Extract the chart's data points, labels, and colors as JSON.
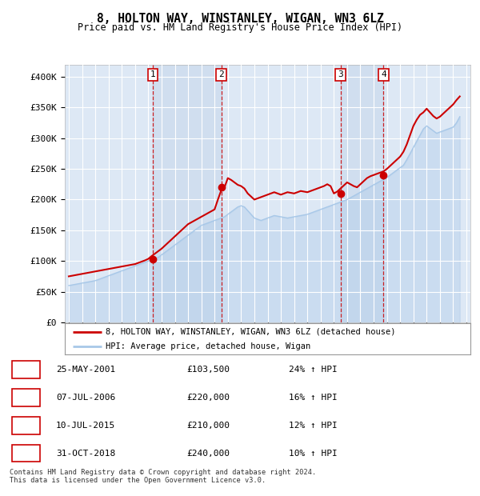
{
  "title": "8, HOLTON WAY, WINSTANLEY, WIGAN, WN3 6LZ",
  "subtitle": "Price paid vs. HM Land Registry's House Price Index (HPI)",
  "background_color": "#ffffff",
  "plot_bg_color": "#dde8f5",
  "grid_color": "#ffffff",
  "sale_color": "#cc0000",
  "hpi_color": "#a8c8e8",
  "ylim": [
    0,
    420000
  ],
  "yticks": [
    0,
    50000,
    100000,
    150000,
    200000,
    250000,
    300000,
    350000,
    400000
  ],
  "ytick_labels": [
    "£0",
    "£50K",
    "£100K",
    "£150K",
    "£200K",
    "£250K",
    "£300K",
    "£350K",
    "£400K"
  ],
  "sales": [
    {
      "date": "2001-05-25",
      "price": 103500,
      "label": "1"
    },
    {
      "date": "2006-07-07",
      "price": 220000,
      "label": "2"
    },
    {
      "date": "2015-07-10",
      "price": 210000,
      "label": "3"
    },
    {
      "date": "2018-10-31",
      "price": 240000,
      "label": "4"
    }
  ],
  "sale_table": [
    {
      "num": "1",
      "date": "25-MAY-2001",
      "price": "£103,500",
      "change": "24% ↑ HPI"
    },
    {
      "num": "2",
      "date": "07-JUL-2006",
      "price": "£220,000",
      "change": "16% ↑ HPI"
    },
    {
      "num": "3",
      "date": "10-JUL-2015",
      "price": "£210,000",
      "change": "12% ↑ HPI"
    },
    {
      "num": "4",
      "date": "31-OCT-2018",
      "price": "£240,000",
      "change": "10% ↑ HPI"
    }
  ],
  "footer": "Contains HM Land Registry data © Crown copyright and database right 2024.\nThis data is licensed under the Open Government Licence v3.0.",
  "legend_sale": "8, HOLTON WAY, WINSTANLEY, WIGAN, WN3 6LZ (detached house)",
  "legend_hpi": "HPI: Average price, detached house, Wigan",
  "hpi_x": [
    1995.0,
    1995.25,
    1995.5,
    1995.75,
    1996.0,
    1996.25,
    1996.5,
    1996.75,
    1997.0,
    1997.25,
    1997.5,
    1997.75,
    1998.0,
    1998.25,
    1998.5,
    1998.75,
    1999.0,
    1999.25,
    1999.5,
    1999.75,
    2000.0,
    2000.25,
    2000.5,
    2000.75,
    2001.0,
    2001.25,
    2001.5,
    2001.75,
    2002.0,
    2002.25,
    2002.5,
    2002.75,
    2003.0,
    2003.25,
    2003.5,
    2003.75,
    2004.0,
    2004.25,
    2004.5,
    2004.75,
    2005.0,
    2005.25,
    2005.5,
    2005.75,
    2006.0,
    2006.25,
    2006.5,
    2006.75,
    2007.0,
    2007.25,
    2007.5,
    2007.75,
    2008.0,
    2008.25,
    2008.5,
    2008.75,
    2009.0,
    2009.25,
    2009.5,
    2009.75,
    2010.0,
    2010.25,
    2010.5,
    2010.75,
    2011.0,
    2011.25,
    2011.5,
    2011.75,
    2012.0,
    2012.25,
    2012.5,
    2012.75,
    2013.0,
    2013.25,
    2013.5,
    2013.75,
    2014.0,
    2014.25,
    2014.5,
    2014.75,
    2015.0,
    2015.25,
    2015.5,
    2015.75,
    2016.0,
    2016.25,
    2016.5,
    2016.75,
    2017.0,
    2017.25,
    2017.5,
    2017.75,
    2018.0,
    2018.25,
    2018.5,
    2018.75,
    2019.0,
    2019.25,
    2019.5,
    2019.75,
    2020.0,
    2020.25,
    2020.5,
    2020.75,
    2021.0,
    2021.25,
    2021.5,
    2021.75,
    2022.0,
    2022.25,
    2022.5,
    2022.75,
    2023.0,
    2023.25,
    2023.5,
    2023.75,
    2024.0,
    2024.25,
    2024.5
  ],
  "hpi_y": [
    60000,
    61000,
    62000,
    63000,
    64000,
    65000,
    66000,
    67000,
    68000,
    70000,
    72000,
    74000,
    76000,
    78000,
    80000,
    82000,
    84000,
    86000,
    88000,
    90000,
    92000,
    94000,
    96000,
    98000,
    100000,
    102000,
    104000,
    106000,
    110000,
    114000,
    118000,
    122000,
    126000,
    130000,
    134000,
    138000,
    142000,
    146000,
    150000,
    154000,
    158000,
    160000,
    162000,
    164000,
    166000,
    168000,
    170000,
    172000,
    176000,
    180000,
    184000,
    188000,
    190000,
    188000,
    182000,
    176000,
    170000,
    168000,
    166000,
    168000,
    170000,
    172000,
    174000,
    173000,
    172000,
    171000,
    170000,
    171000,
    172000,
    173000,
    174000,
    175000,
    176000,
    178000,
    180000,
    182000,
    184000,
    186000,
    188000,
    190000,
    192000,
    194000,
    196000,
    198000,
    200000,
    203000,
    206000,
    209000,
    212000,
    215000,
    218000,
    221000,
    224000,
    227000,
    230000,
    233000,
    236000,
    240000,
    244000,
    248000,
    252000,
    256000,
    265000,
    275000,
    285000,
    295000,
    305000,
    315000,
    320000,
    316000,
    312000,
    308000,
    310000,
    312000,
    314000,
    316000,
    318000,
    325000,
    335000
  ],
  "sale_x": [
    1995.0,
    1995.25,
    1995.5,
    1995.75,
    1996.0,
    1996.25,
    1996.5,
    1996.75,
    1997.0,
    1997.25,
    1997.5,
    1997.75,
    1998.0,
    1998.25,
    1998.5,
    1998.75,
    1999.0,
    1999.25,
    1999.5,
    1999.75,
    2000.0,
    2000.25,
    2000.5,
    2000.75,
    2001.0,
    2001.25,
    2001.5,
    2001.75,
    2002.0,
    2002.25,
    2002.5,
    2002.75,
    2003.0,
    2003.25,
    2003.5,
    2003.75,
    2004.0,
    2004.25,
    2004.5,
    2004.75,
    2005.0,
    2005.25,
    2005.5,
    2005.75,
    2006.0,
    2006.25,
    2006.5,
    2006.75,
    2007.0,
    2007.25,
    2007.5,
    2007.75,
    2008.0,
    2008.25,
    2008.5,
    2008.75,
    2009.0,
    2009.25,
    2009.5,
    2009.75,
    2010.0,
    2010.25,
    2010.5,
    2010.75,
    2011.0,
    2011.25,
    2011.5,
    2011.75,
    2012.0,
    2012.25,
    2012.5,
    2012.75,
    2013.0,
    2013.25,
    2013.5,
    2013.75,
    2014.0,
    2014.25,
    2014.5,
    2014.75,
    2015.0,
    2015.25,
    2015.5,
    2015.75,
    2016.0,
    2016.25,
    2016.5,
    2016.75,
    2017.0,
    2017.25,
    2017.5,
    2017.75,
    2018.0,
    2018.25,
    2018.5,
    2018.75,
    2019.0,
    2019.25,
    2019.5,
    2019.75,
    2020.0,
    2020.25,
    2020.5,
    2020.75,
    2021.0,
    2021.25,
    2021.5,
    2021.75,
    2022.0,
    2022.25,
    2022.5,
    2022.75,
    2023.0,
    2023.25,
    2023.5,
    2023.75,
    2024.0,
    2024.25,
    2024.5
  ],
  "sale_y": [
    75000,
    76000,
    77000,
    78000,
    79000,
    80000,
    81000,
    82000,
    83000,
    84000,
    85000,
    86000,
    87000,
    88000,
    89000,
    90000,
    91000,
    92000,
    93000,
    94000,
    95000,
    97000,
    99000,
    101000,
    103500,
    108000,
    112000,
    116000,
    120000,
    125000,
    130000,
    135000,
    140000,
    145000,
    150000,
    155000,
    160000,
    163000,
    166000,
    169000,
    172000,
    175000,
    178000,
    181000,
    184000,
    200000,
    215000,
    220000,
    235000,
    232000,
    228000,
    224000,
    222000,
    218000,
    210000,
    205000,
    200000,
    202000,
    204000,
    206000,
    208000,
    210000,
    212000,
    210000,
    208000,
    210000,
    212000,
    211000,
    210000,
    212000,
    214000,
    213000,
    212000,
    214000,
    216000,
    218000,
    220000,
    222000,
    225000,
    222000,
    210000,
    213000,
    218000,
    223000,
    228000,
    225000,
    222000,
    220000,
    225000,
    230000,
    235000,
    238000,
    240000,
    242000,
    244000,
    246000,
    250000,
    255000,
    260000,
    265000,
    270000,
    278000,
    290000,
    305000,
    320000,
    330000,
    338000,
    342000,
    348000,
    342000,
    336000,
    332000,
    335000,
    340000,
    345000,
    350000,
    355000,
    362000,
    368000
  ]
}
